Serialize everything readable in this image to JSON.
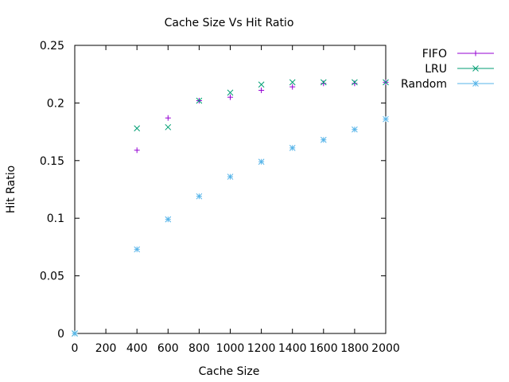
{
  "chart_data": {
    "type": "scatter",
    "title": "Cache Size Vs Hit Ratio",
    "xlabel": "Cache Size",
    "ylabel": "Hit Ratio",
    "xlim": [
      0,
      2000
    ],
    "ylim": [
      0,
      0.25
    ],
    "xticks": [
      0,
      200,
      400,
      600,
      800,
      1000,
      1200,
      1400,
      1600,
      1800,
      2000
    ],
    "yticks": [
      0,
      0.05,
      0.1,
      0.15,
      0.2,
      0.25
    ],
    "xtick_labels": [
      "0",
      "200",
      "400",
      "600",
      "800",
      "1000",
      "1200",
      "1400",
      "1600",
      "1800",
      "2000"
    ],
    "ytick_labels": [
      "0",
      "0.05",
      "0.1",
      "0.15",
      "0.2",
      "0.25"
    ],
    "grid": false,
    "legend_position": "outside-top-right",
    "series": [
      {
        "name": "FIFO",
        "marker": "plus",
        "color": "#9400d3",
        "x": [
          0,
          400,
          600,
          800,
          1000,
          1200,
          1400,
          1600,
          1800,
          2000
        ],
        "y": [
          0,
          0.159,
          0.187,
          0.202,
          0.205,
          0.211,
          0.214,
          0.217,
          0.217,
          0.218
        ]
      },
      {
        "name": "LRU",
        "marker": "cross",
        "color": "#009e73",
        "x": [
          0,
          400,
          600,
          800,
          1000,
          1200,
          1400,
          1600,
          1800,
          2000
        ],
        "y": [
          0,
          0.178,
          0.179,
          0.202,
          0.209,
          0.216,
          0.218,
          0.218,
          0.218,
          0.218
        ]
      },
      {
        "name": "Random",
        "marker": "star",
        "color": "#56b4e9",
        "x": [
          0,
          400,
          600,
          800,
          1000,
          1200,
          1400,
          1600,
          1800,
          2000
        ],
        "y": [
          0,
          0.073,
          0.099,
          0.119,
          0.136,
          0.149,
          0.161,
          0.168,
          0.177,
          0.186
        ]
      }
    ]
  }
}
